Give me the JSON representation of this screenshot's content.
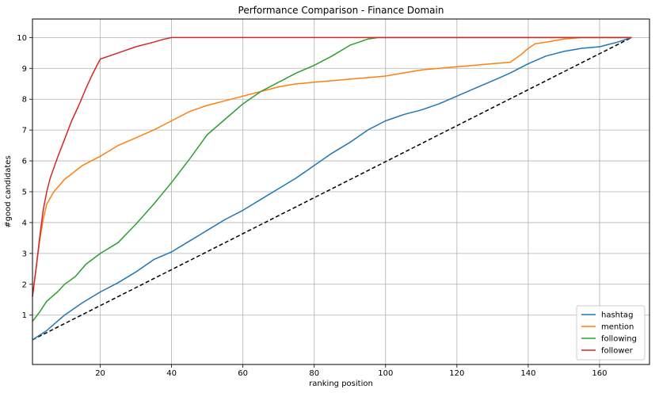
{
  "chart_data": {
    "type": "line",
    "title": "Performance Comparison - Finance Domain",
    "xlabel": "ranking position",
    "ylabel": "#good candidates",
    "xlim": [
      1,
      174
    ],
    "ylim": [
      -0.6,
      10.6
    ],
    "xticks": [
      20,
      40,
      60,
      80,
      100,
      120,
      140,
      160
    ],
    "yticks": [
      1,
      2,
      3,
      4,
      5,
      6,
      7,
      8,
      9,
      10
    ],
    "grid": true,
    "legend_position": "bottom-right",
    "baseline": {
      "style": "dashed",
      "color": "#000000",
      "points": [
        [
          1,
          0.2
        ],
        [
          169,
          10
        ]
      ]
    },
    "series": [
      {
        "name": "hashtag",
        "color": "#1f77b4",
        "points": [
          [
            1,
            0.2
          ],
          [
            5,
            0.5
          ],
          [
            10,
            1.0
          ],
          [
            15,
            1.4
          ],
          [
            20,
            1.75
          ],
          [
            25,
            2.05
          ],
          [
            30,
            2.4
          ],
          [
            35,
            2.8
          ],
          [
            40,
            3.05
          ],
          [
            45,
            3.4
          ],
          [
            50,
            3.75
          ],
          [
            55,
            4.1
          ],
          [
            60,
            4.4
          ],
          [
            65,
            4.75
          ],
          [
            70,
            5.1
          ],
          [
            75,
            5.45
          ],
          [
            80,
            5.85
          ],
          [
            85,
            6.25
          ],
          [
            90,
            6.6
          ],
          [
            95,
            7.0
          ],
          [
            100,
            7.3
          ],
          [
            105,
            7.5
          ],
          [
            110,
            7.65
          ],
          [
            115,
            7.85
          ],
          [
            120,
            8.1
          ],
          [
            125,
            8.35
          ],
          [
            130,
            8.6
          ],
          [
            135,
            8.85
          ],
          [
            140,
            9.15
          ],
          [
            145,
            9.4
          ],
          [
            150,
            9.55
          ],
          [
            155,
            9.65
          ],
          [
            160,
            9.7
          ],
          [
            165,
            9.85
          ],
          [
            169,
            10.0
          ]
        ]
      },
      {
        "name": "mention",
        "color": "#ff7f0e",
        "points": [
          [
            1,
            1.6
          ],
          [
            2,
            2.5
          ],
          [
            3,
            3.4
          ],
          [
            4,
            4.1
          ],
          [
            5,
            4.6
          ],
          [
            7,
            5.0
          ],
          [
            10,
            5.4
          ],
          [
            15,
            5.85
          ],
          [
            20,
            6.15
          ],
          [
            25,
            6.5
          ],
          [
            30,
            6.75
          ],
          [
            35,
            7.0
          ],
          [
            40,
            7.3
          ],
          [
            45,
            7.6
          ],
          [
            50,
            7.8
          ],
          [
            55,
            7.95
          ],
          [
            60,
            8.1
          ],
          [
            65,
            8.25
          ],
          [
            70,
            8.4
          ],
          [
            75,
            8.5
          ],
          [
            80,
            8.55
          ],
          [
            85,
            8.6
          ],
          [
            90,
            8.65
          ],
          [
            95,
            8.7
          ],
          [
            100,
            8.75
          ],
          [
            105,
            8.85
          ],
          [
            110,
            8.95
          ],
          [
            115,
            9.0
          ],
          [
            120,
            9.05
          ],
          [
            125,
            9.1
          ],
          [
            130,
            9.15
          ],
          [
            135,
            9.2
          ],
          [
            138,
            9.45
          ],
          [
            140,
            9.65
          ],
          [
            142,
            9.8
          ],
          [
            145,
            9.85
          ],
          [
            150,
            9.95
          ],
          [
            155,
            10.0
          ],
          [
            169,
            10.0
          ]
        ]
      },
      {
        "name": "following",
        "color": "#2ca02c",
        "points": [
          [
            1,
            0.8
          ],
          [
            3,
            1.1
          ],
          [
            5,
            1.45
          ],
          [
            8,
            1.75
          ],
          [
            10,
            2.0
          ],
          [
            13,
            2.25
          ],
          [
            16,
            2.65
          ],
          [
            20,
            3.0
          ],
          [
            25,
            3.35
          ],
          [
            30,
            3.95
          ],
          [
            35,
            4.6
          ],
          [
            40,
            5.3
          ],
          [
            45,
            6.05
          ],
          [
            50,
            6.85
          ],
          [
            55,
            7.35
          ],
          [
            60,
            7.85
          ],
          [
            65,
            8.25
          ],
          [
            70,
            8.55
          ],
          [
            75,
            8.85
          ],
          [
            80,
            9.1
          ],
          [
            85,
            9.4
          ],
          [
            90,
            9.75
          ],
          [
            95,
            9.95
          ],
          [
            98,
            10.0
          ],
          [
            169,
            10.0
          ]
        ]
      },
      {
        "name": "follower",
        "color": "#d62728",
        "points": [
          [
            1,
            1.6
          ],
          [
            2,
            2.5
          ],
          [
            3,
            3.5
          ],
          [
            4,
            4.4
          ],
          [
            5,
            5.0
          ],
          [
            6,
            5.45
          ],
          [
            8,
            6.1
          ],
          [
            10,
            6.7
          ],
          [
            12,
            7.3
          ],
          [
            14,
            7.8
          ],
          [
            16,
            8.35
          ],
          [
            18,
            8.85
          ],
          [
            20,
            9.3
          ],
          [
            25,
            9.5
          ],
          [
            30,
            9.7
          ],
          [
            35,
            9.85
          ],
          [
            38,
            9.95
          ],
          [
            40,
            10.0
          ],
          [
            169,
            10.0
          ]
        ]
      }
    ]
  }
}
